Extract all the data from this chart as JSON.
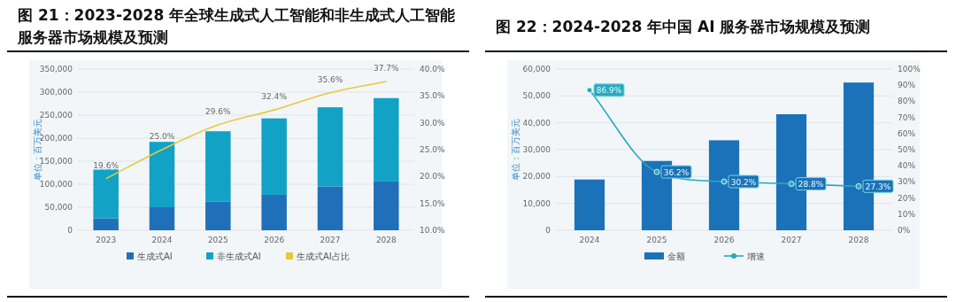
{
  "chart_data": [
    {
      "type": "bar",
      "title": "图 21：2023-2028 年全球生成式人工智能和非生成式人工智能服务器市场规模及预测",
      "ylabel": "单位：百万美元",
      "categories": [
        "2023",
        "2024",
        "2025",
        "2026",
        "2027",
        "2028"
      ],
      "stacked": true,
      "grid": "y",
      "legend": "bottom",
      "ylim": [
        0,
        350000
      ],
      "yticks": [
        {
          "value": 0,
          "label": "0"
        },
        {
          "value": 50000,
          "label": "50,000"
        },
        {
          "value": 100000,
          "label": "100,000"
        },
        {
          "value": 150000,
          "label": "150,000"
        },
        {
          "value": 200000,
          "label": "200,000"
        },
        {
          "value": 250000,
          "label": "250,000"
        },
        {
          "value": 300000,
          "label": "300,000"
        },
        {
          "value": 350000,
          "label": "350,000"
        }
      ],
      "y2lim": [
        10,
        40
      ],
      "y2ticks": [
        {
          "value": 10,
          "label": "10.0%"
        },
        {
          "value": 15,
          "label": "15.0%"
        },
        {
          "value": 20,
          "label": "20.0%"
        },
        {
          "value": 25,
          "label": "25.0%"
        },
        {
          "value": 30,
          "label": "30.0%"
        },
        {
          "value": 35,
          "label": "35.0%"
        },
        {
          "value": 40,
          "label": "40.0%"
        }
      ],
      "series": [
        {
          "name": "生成式AI",
          "color": "#1f70b8",
          "values": [
            26000,
            50000,
            62000,
            77000,
            95000,
            106000
          ]
        },
        {
          "name": "非生成式AI",
          "color": "#12a2c6",
          "values": [
            110000,
            142000,
            153000,
            166000,
            172000,
            181000
          ]
        },
        {
          "name": "生成式AI占比",
          "type": "line",
          "axis": "y2",
          "color": "#e6c93c",
          "values": [
            19.6,
            25.0,
            29.6,
            32.4,
            35.6,
            37.7
          ],
          "value_labels": [
            "19.6%",
            "25.0%",
            "29.6%",
            "32.4%",
            "35.6%",
            "37.7%"
          ]
        }
      ]
    },
    {
      "type": "bar",
      "title": "图 22：2024-2028 年中国 AI 服务器市场规模及预测",
      "ylabel": "单位：百万美元",
      "categories": [
        "2024",
        "2025",
        "2026",
        "2027",
        "2028"
      ],
      "grid": "y",
      "legend": "bottom",
      "marker": "circle",
      "ylim": [
        0,
        60000
      ],
      "yticks": [
        {
          "value": 0,
          "label": "0"
        },
        {
          "value": 10000,
          "label": "10,000"
        },
        {
          "value": 20000,
          "label": "20,000"
        },
        {
          "value": 30000,
          "label": "30,000"
        },
        {
          "value": 40000,
          "label": "40,000"
        },
        {
          "value": 50000,
          "label": "50,000"
        },
        {
          "value": 60000,
          "label": "60,000"
        }
      ],
      "y2lim": [
        0,
        100
      ],
      "y2ticks": [
        {
          "value": 0,
          "label": "0%"
        },
        {
          "value": 10,
          "label": "10%"
        },
        {
          "value": 20,
          "label": "20%"
        },
        {
          "value": 30,
          "label": "30%"
        },
        {
          "value": 40,
          "label": "40%"
        },
        {
          "value": 50,
          "label": "50%"
        },
        {
          "value": 60,
          "label": "60%"
        },
        {
          "value": 70,
          "label": "70%"
        },
        {
          "value": 80,
          "label": "80%"
        },
        {
          "value": 90,
          "label": "90%"
        },
        {
          "value": 100,
          "label": "100%"
        }
      ],
      "series": [
        {
          "name": "金额",
          "color": "#1c72b8",
          "values": [
            18900,
            25800,
            33500,
            43200,
            55000
          ]
        },
        {
          "name": "增速",
          "type": "line",
          "axis": "y2",
          "color": "#27a9bf",
          "values": [
            86.9,
            36.2,
            30.2,
            28.8,
            27.3
          ],
          "value_labels": [
            "86.9%",
            "36.2%",
            "30.2%",
            "28.8%",
            "27.3%"
          ]
        }
      ]
    }
  ]
}
